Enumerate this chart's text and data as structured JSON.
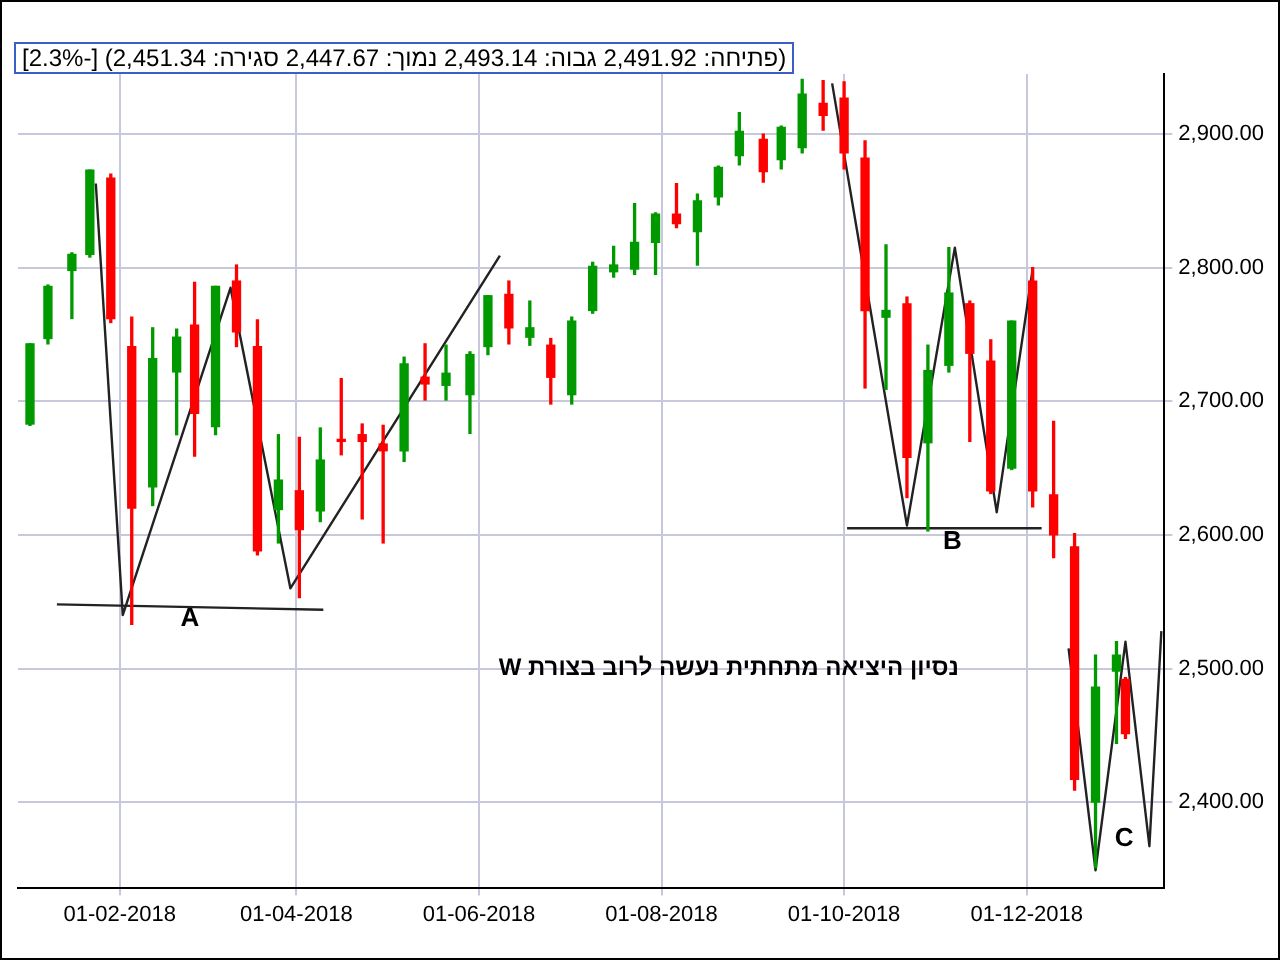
{
  "chart_data": {
    "type": "candlestick",
    "subtitle": "(פתיחה: 2,491.92  גבוה: 2,493.14  נמוך: 2,447.67  סגירה: 2,451.34) [-2.3%]",
    "x": [
      "2018-01-02",
      "2018-01-08",
      "2018-01-16",
      "2018-01-22",
      "2018-01-29",
      "2018-02-05",
      "2018-02-12",
      "2018-02-20",
      "2018-02-26",
      "2018-03-05",
      "2018-03-12",
      "2018-03-19",
      "2018-03-26",
      "2018-04-02",
      "2018-04-09",
      "2018-04-16",
      "2018-04-23",
      "2018-04-30",
      "2018-05-07",
      "2018-05-14",
      "2018-05-21",
      "2018-05-29",
      "2018-06-04",
      "2018-06-11",
      "2018-06-18",
      "2018-06-25",
      "2018-07-02",
      "2018-07-09",
      "2018-07-16",
      "2018-07-23",
      "2018-07-30",
      "2018-08-06",
      "2018-08-13",
      "2018-08-20",
      "2018-08-27",
      "2018-09-04",
      "2018-09-10",
      "2018-09-17",
      "2018-09-24",
      "2018-10-01",
      "2018-10-08",
      "2018-10-15",
      "2018-10-22",
      "2018-10-29",
      "2018-11-05",
      "2018-11-12",
      "2018-11-19",
      "2018-11-26",
      "2018-12-03",
      "2018-12-10",
      "2018-12-17",
      "2018-12-24",
      "2018-12-31",
      "2019-01-03"
    ],
    "ohlc": [
      [
        2683,
        2743,
        2682,
        2743
      ],
      [
        2747,
        2787,
        2743,
        2786
      ],
      [
        2798,
        2811,
        2762,
        2810
      ],
      [
        2810,
        2873,
        2808,
        2873
      ],
      [
        2867,
        2870,
        2759,
        2762
      ],
      [
        2741,
        2763,
        2533,
        2620
      ],
      [
        2636,
        2755,
        2622,
        2732
      ],
      [
        2722,
        2754,
        2675,
        2748
      ],
      [
        2757,
        2789,
        2659,
        2691
      ],
      [
        2681,
        2786,
        2675,
        2786
      ],
      [
        2790,
        2802,
        2741,
        2752
      ],
      [
        2741,
        2761,
        2585,
        2588
      ],
      [
        2619,
        2675,
        2594,
        2641
      ],
      [
        2633,
        2673,
        2553,
        2604
      ],
      [
        2618,
        2680,
        2610,
        2656
      ],
      [
        2671,
        2717,
        2660,
        2670
      ],
      [
        2675,
        2683,
        2612,
        2670
      ],
      [
        2668,
        2682,
        2594,
        2663
      ],
      [
        2663,
        2733,
        2655,
        2728
      ],
      [
        2718,
        2743,
        2701,
        2713
      ],
      [
        2712,
        2742,
        2701,
        2721
      ],
      [
        2705,
        2737,
        2676,
        2735
      ],
      [
        2741,
        2779,
        2735,
        2779
      ],
      [
        2780,
        2790,
        2743,
        2755
      ],
      [
        2748,
        2775,
        2742,
        2755
      ],
      [
        2742,
        2747,
        2698,
        2718
      ],
      [
        2705,
        2763,
        2698,
        2760
      ],
      [
        2768,
        2804,
        2766,
        2801
      ],
      [
        2797,
        2816,
        2793,
        2802
      ],
      [
        2799,
        2848,
        2795,
        2819
      ],
      [
        2819,
        2841,
        2795,
        2840
      ],
      [
        2840,
        2863,
        2830,
        2833
      ],
      [
        2827,
        2855,
        2802,
        2850
      ],
      [
        2853,
        2876,
        2847,
        2875
      ],
      [
        2884,
        2916,
        2877,
        2902
      ],
      [
        2896,
        2900,
        2864,
        2872
      ],
      [
        2881,
        2906,
        2874,
        2905
      ],
      [
        2890,
        2941,
        2886,
        2930
      ],
      [
        2923,
        2940,
        2903,
        2914
      ],
      [
        2927,
        2939,
        2874,
        2886
      ],
      [
        2882,
        2895,
        2710,
        2768
      ],
      [
        2763,
        2817,
        2709,
        2768
      ],
      [
        2773,
        2778,
        2628,
        2658
      ],
      [
        2669,
        2742,
        2603,
        2723
      ],
      [
        2727,
        2815,
        2722,
        2781
      ],
      [
        2773,
        2775,
        2670,
        2736
      ],
      [
        2730,
        2746,
        2631,
        2633
      ],
      [
        2650,
        2760,
        2649,
        2760
      ],
      [
        2790,
        2800,
        2621,
        2633
      ],
      [
        2630,
        2685,
        2583,
        2600
      ],
      [
        2591,
        2601,
        2409,
        2417
      ],
      [
        2400,
        2510,
        2351,
        2486
      ],
      [
        2498,
        2520,
        2444,
        2510
      ],
      [
        2491.92,
        2493.14,
        2447.67,
        2451.34
      ]
    ],
    "colors": [
      "#009900",
      "#009900",
      "#009900",
      "#009900",
      "#ff0000",
      "#ff0000",
      "#009900",
      "#009900",
      "#ff0000",
      "#009900",
      "#ff0000",
      "#ff0000",
      "#009900",
      "#ff0000",
      "#009900",
      "#ff0000",
      "#ff0000",
      "#ff0000",
      "#009900",
      "#ff0000",
      "#009900",
      "#009900",
      "#009900",
      "#ff0000",
      "#009900",
      "#ff0000",
      "#009900",
      "#009900",
      "#009900",
      "#009900",
      "#009900",
      "#ff0000",
      "#009900",
      "#009900",
      "#009900",
      "#ff0000",
      "#009900",
      "#009900",
      "#ff0000",
      "#ff0000",
      "#ff0000",
      "#009900",
      "#ff0000",
      "#009900",
      "#009900",
      "#ff0000",
      "#ff0000",
      "#009900",
      "#ff0000",
      "#ff0000",
      "#ff0000",
      "#009900",
      "#009900",
      "#ff0000"
    ],
    "series": [
      {
        "type": "line",
        "color": "#222222",
        "x": [
          "2018-01-24",
          "2018-02-02",
          "2018-03-10",
          "2018-03-30",
          "2018-06-08"
        ],
        "values": [
          2863,
          2540,
          2785,
          2560,
          2809
        ]
      },
      {
        "type": "line",
        "color": "#222222",
        "x": [
          "2018-01-11",
          "2018-04-10"
        ],
        "values": [
          2548,
          2544
        ]
      },
      {
        "type": "line",
        "color": "#222222",
        "x": [
          "2018-09-27",
          "2018-10-22",
          "2018-11-07",
          "2018-11-21",
          "2018-12-03"
        ],
        "values": [
          2938,
          2607,
          2815,
          2617,
          2799
        ]
      },
      {
        "type": "line",
        "color": "#222222",
        "x": [
          "2018-10-02",
          "2018-12-06"
        ],
        "values": [
          2605,
          2605
        ]
      },
      {
        "type": "line",
        "color": "#222222",
        "x": [
          "2018-12-15",
          "2018-12-24",
          "2019-01-03",
          "2019-01-11",
          "2019-01-15"
        ],
        "values": [
          2515,
          2349,
          2520,
          2367,
          2528
        ]
      }
    ],
    "annotations": [
      "A",
      "B",
      "C",
      "נסיון היציאה מתחתית נעשה לרוב בצורת W"
    ],
    "xlim": [
      "2017-12-29",
      "2019-01-16"
    ],
    "xticks": [
      {
        "value": "2018-02-01",
        "label": "01-02-2018"
      },
      {
        "value": "2018-04-01",
        "label": "01-04-2018"
      },
      {
        "value": "2018-06-01",
        "label": "01-06-2018"
      },
      {
        "value": "2018-08-01",
        "label": "01-08-2018"
      },
      {
        "value": "2018-10-01",
        "label": "01-10-2018"
      },
      {
        "value": "2018-12-01",
        "label": "01-12-2018"
      }
    ],
    "ylim": [
      2336,
      2945
    ],
    "yticks": [
      {
        "value": 2400,
        "label": "2,400.00"
      },
      {
        "value": 2500,
        "label": "2,500.00"
      },
      {
        "value": 2600,
        "label": "2,600.00"
      },
      {
        "value": 2700,
        "label": "2,700.00"
      },
      {
        "value": 2800,
        "label": "2,800.00"
      },
      {
        "value": 2900,
        "label": "2,900.00"
      }
    ],
    "grid": true,
    "legend": false,
    "marker": "none"
  }
}
